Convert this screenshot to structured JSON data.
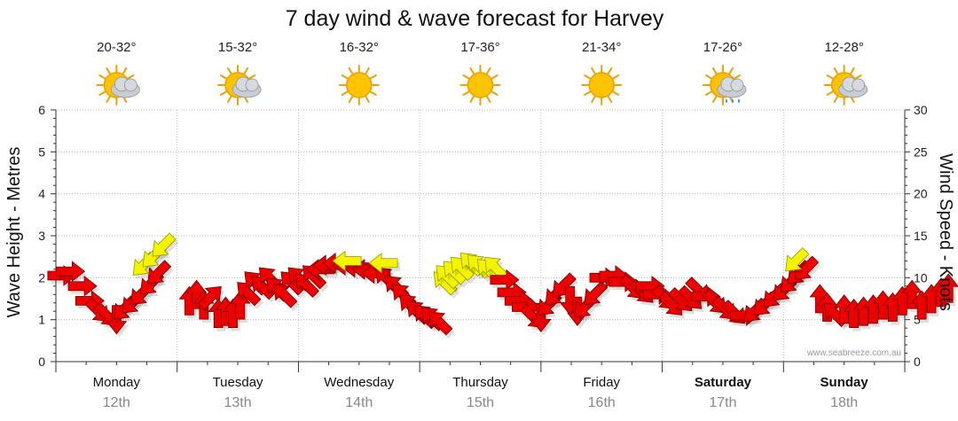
{
  "chart_data": {
    "type": "line",
    "title": "7 day wind & wave forecast for Harvey",
    "ylabel_left": "Wave Height - Metres",
    "ylabel_right": "Wind Speed - Knots",
    "ylim_left": [
      0,
      6
    ],
    "ylim_right": [
      0,
      30
    ],
    "yticks_left": [
      "0",
      "1",
      "2",
      "3",
      "4",
      "5",
      "6"
    ],
    "yticks_right": [
      "0",
      "5",
      "10",
      "15",
      "20",
      "25",
      "30"
    ],
    "grid": true,
    "days": [
      {
        "name": "Monday",
        "date": "12th",
        "temps": "20-32°",
        "icon": "partly-cloudy-icon",
        "weekend": false
      },
      {
        "name": "Tuesday",
        "date": "13th",
        "temps": "15-32°",
        "icon": "partly-cloudy-icon",
        "weekend": false
      },
      {
        "name": "Wednesday",
        "date": "14th",
        "temps": "16-32°",
        "icon": "sunny-icon",
        "weekend": false
      },
      {
        "name": "Thursday",
        "date": "15th",
        "temps": "17-36°",
        "icon": "sunny-icon",
        "weekend": false
      },
      {
        "name": "Friday",
        "date": "16th",
        "temps": "21-34°",
        "icon": "sunny-icon",
        "weekend": false
      },
      {
        "name": "Saturday",
        "date": "17th",
        "temps": "17-26°",
        "icon": "showers-icon",
        "weekend": true
      },
      {
        "name": "Sunday",
        "date": "18th",
        "temps": "12-28°",
        "icon": "partly-cloudy-icon",
        "weekend": true
      }
    ],
    "wind_arrows": [
      [
        0.05,
        2.05,
        "E"
      ],
      [
        0.12,
        2.15,
        "E"
      ],
      [
        0.22,
        1.8,
        "E"
      ],
      [
        0.28,
        1.45,
        "E"
      ],
      [
        0.35,
        1.2,
        "SE"
      ],
      [
        0.42,
        1.1,
        "SE"
      ],
      [
        0.5,
        1.0,
        "S"
      ],
      [
        0.56,
        1.25,
        "SW"
      ],
      [
        0.63,
        1.4,
        "SW"
      ],
      [
        0.7,
        1.6,
        "SW"
      ],
      [
        0.78,
        1.85,
        "SW"
      ],
      [
        0.84,
        2.1,
        "SW"
      ],
      [
        0.72,
        2.3,
        "SW"
      ],
      [
        0.8,
        2.5,
        "SW"
      ],
      [
        0.88,
        2.75,
        "SW"
      ],
      [
        1.1,
        1.45,
        "N"
      ],
      [
        1.16,
        1.6,
        "N"
      ],
      [
        1.22,
        1.35,
        "N"
      ],
      [
        1.28,
        1.55,
        "NE"
      ],
      [
        1.34,
        1.15,
        "N"
      ],
      [
        1.4,
        1.2,
        "N"
      ],
      [
        1.46,
        1.15,
        "N"
      ],
      [
        1.52,
        1.35,
        "N"
      ],
      [
        1.58,
        1.65,
        "NW"
      ],
      [
        1.64,
        1.9,
        "NW"
      ],
      [
        1.7,
        1.8,
        "NW"
      ],
      [
        1.76,
        2.0,
        "NW"
      ],
      [
        1.82,
        1.75,
        "NW"
      ],
      [
        1.88,
        1.6,
        "NW"
      ],
      [
        1.94,
        1.9,
        "NW"
      ],
      [
        2.0,
        2.0,
        "NW"
      ],
      [
        2.06,
        1.85,
        "NW"
      ],
      [
        2.12,
        2.05,
        "NW"
      ],
      [
        2.18,
        2.2,
        "W"
      ],
      [
        2.24,
        2.3,
        "W"
      ],
      [
        2.32,
        2.35,
        "W"
      ],
      [
        2.4,
        2.3,
        "W"
      ],
      [
        2.48,
        2.25,
        "W"
      ],
      [
        2.56,
        2.2,
        "W"
      ],
      [
        2.64,
        2.1,
        "W"
      ],
      [
        2.72,
        2.0,
        "NW"
      ],
      [
        2.8,
        1.8,
        "NW"
      ],
      [
        2.86,
        1.6,
        "NW"
      ],
      [
        2.92,
        1.35,
        "NW"
      ],
      [
        2.98,
        1.2,
        "NW"
      ],
      [
        3.04,
        1.1,
        "NW"
      ],
      [
        3.1,
        1.05,
        "NW"
      ],
      [
        3.16,
        0.95,
        "NW"
      ],
      [
        2.4,
        2.4,
        "W"
      ],
      [
        2.7,
        2.35,
        "W"
      ],
      [
        3.2,
        1.9,
        "NW"
      ],
      [
        3.22,
        2.05,
        "NW"
      ],
      [
        3.28,
        2.15,
        "NW"
      ],
      [
        3.34,
        2.25,
        "NW"
      ],
      [
        3.42,
        2.35,
        "NW"
      ],
      [
        3.48,
        2.3,
        "NW"
      ],
      [
        3.56,
        2.2,
        "NW"
      ],
      [
        3.62,
        2.25,
        "NW"
      ],
      [
        3.7,
        1.95,
        "E"
      ],
      [
        3.76,
        1.65,
        "E"
      ],
      [
        3.82,
        1.45,
        "E"
      ],
      [
        3.88,
        1.3,
        "E"
      ],
      [
        3.94,
        1.05,
        "SE"
      ],
      [
        4.0,
        1.05,
        "S"
      ],
      [
        4.06,
        1.35,
        "SW"
      ],
      [
        4.12,
        1.6,
        "SW"
      ],
      [
        4.18,
        1.8,
        "SW"
      ],
      [
        4.24,
        1.45,
        "S"
      ],
      [
        4.3,
        1.2,
        "S"
      ],
      [
        4.36,
        1.3,
        "SW"
      ],
      [
        4.44,
        1.6,
        "SW"
      ],
      [
        4.52,
        2.0,
        "E"
      ],
      [
        4.6,
        2.05,
        "E"
      ],
      [
        4.68,
        1.9,
        "E"
      ],
      [
        4.76,
        1.75,
        "SE"
      ],
      [
        4.84,
        1.65,
        "SE"
      ],
      [
        4.9,
        1.8,
        "E"
      ],
      [
        4.96,
        1.6,
        "E"
      ],
      [
        5.02,
        1.5,
        "SE"
      ],
      [
        5.08,
        1.35,
        "SE"
      ],
      [
        5.16,
        1.45,
        "SE"
      ],
      [
        5.24,
        1.5,
        "SE"
      ],
      [
        5.3,
        1.7,
        "SE"
      ],
      [
        5.36,
        1.55,
        "E"
      ],
      [
        5.44,
        1.4,
        "SE"
      ],
      [
        5.52,
        1.25,
        "SE"
      ],
      [
        5.6,
        1.15,
        "SE"
      ],
      [
        5.68,
        1.1,
        "E"
      ],
      [
        5.76,
        1.2,
        "SW"
      ],
      [
        5.84,
        1.35,
        "SW"
      ],
      [
        5.92,
        1.55,
        "SW"
      ],
      [
        6.0,
        1.7,
        "SW"
      ],
      [
        6.06,
        1.9,
        "SW"
      ],
      [
        6.12,
        2.1,
        "SW"
      ],
      [
        6.18,
        2.2,
        "SW"
      ],
      [
        6.1,
        2.4,
        "SW"
      ],
      [
        6.3,
        1.5,
        "N"
      ],
      [
        6.36,
        1.3,
        "N"
      ],
      [
        6.42,
        1.15,
        "NW"
      ],
      [
        6.5,
        1.25,
        "N"
      ],
      [
        6.58,
        1.15,
        "N"
      ],
      [
        6.66,
        1.2,
        "N"
      ],
      [
        6.74,
        1.25,
        "N"
      ],
      [
        6.82,
        1.35,
        "N"
      ],
      [
        6.9,
        1.3,
        "N"
      ],
      [
        6.98,
        1.45,
        "N"
      ],
      [
        7.06,
        1.6,
        "N"
      ],
      [
        7.14,
        1.35,
        "N"
      ],
      [
        7.22,
        1.5,
        "N"
      ],
      [
        7.3,
        1.65,
        "N"
      ],
      [
        7.36,
        1.75,
        "N"
      ]
    ],
    "yellow_arrows": [
      [
        0.72,
        2.3
      ],
      [
        0.8,
        2.5
      ],
      [
        0.88,
        2.75
      ],
      [
        2.4,
        2.4
      ],
      [
        2.7,
        2.35
      ],
      [
        3.2,
        1.9
      ],
      [
        3.22,
        2.05
      ],
      [
        3.28,
        2.15
      ],
      [
        3.34,
        2.25
      ],
      [
        3.42,
        2.35
      ],
      [
        3.48,
        2.3
      ],
      [
        3.56,
        2.2
      ],
      [
        3.62,
        2.25
      ],
      [
        6.1,
        2.4
      ]
    ]
  },
  "watermark": "www.seabreeze.com.au",
  "colors": {
    "arrow_red": "#ee0000",
    "arrow_yellow": "#f4f400",
    "grid": "#b8b8b8",
    "date": "#888888"
  }
}
